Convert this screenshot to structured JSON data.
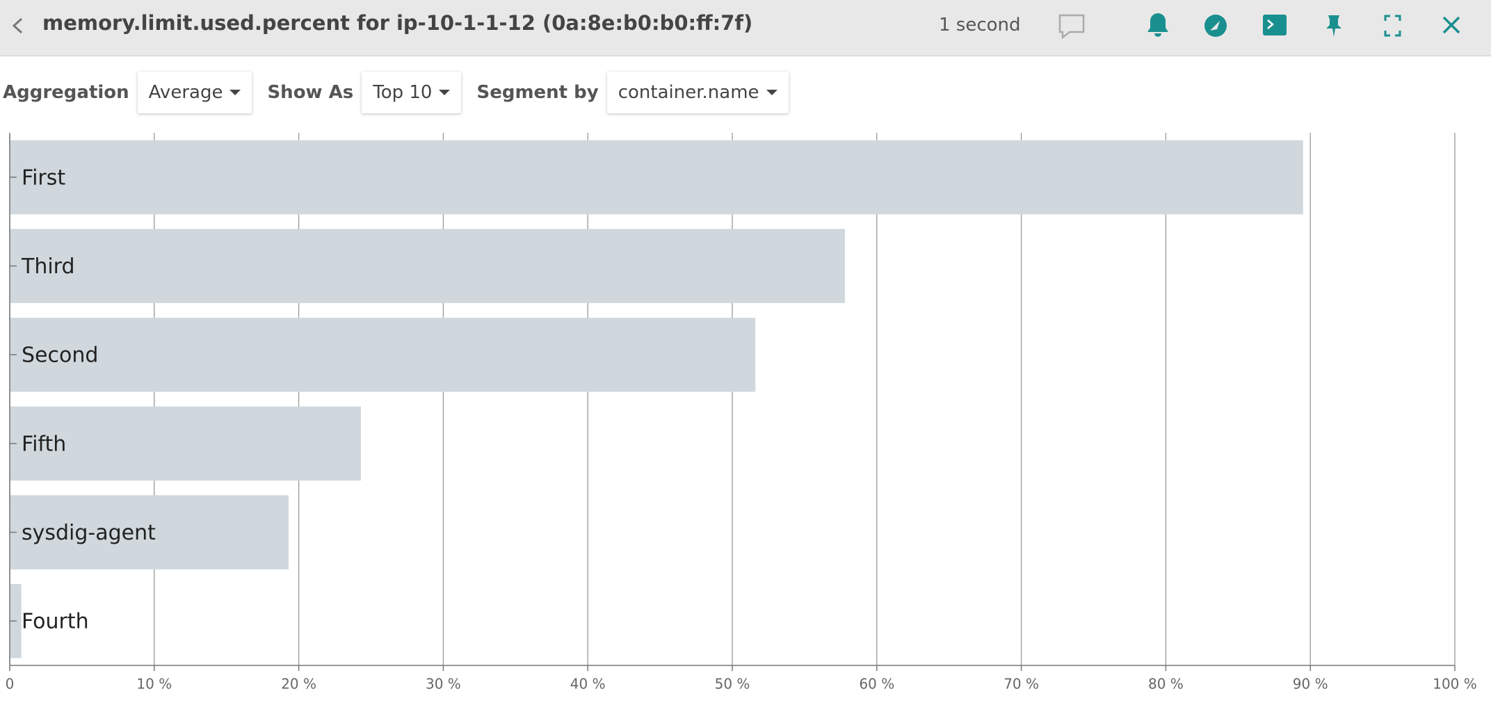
{
  "header": {
    "title": "memory.limit.used.percent for ip-10-1-1-12 (0a:8e:b0:b0:ff:7f)",
    "refresh": "1 second"
  },
  "controls": [
    {
      "label": "Aggregation",
      "value": "Average"
    },
    {
      "label": "Show As",
      "value": "Top 10"
    },
    {
      "label": "Segment by",
      "value": "container.name"
    }
  ],
  "chart_data": {
    "type": "bar",
    "orientation": "horizontal",
    "categories": [
      "First",
      "Third",
      "Second",
      "Fifth",
      "sysdig-agent",
      "Fourth"
    ],
    "values": [
      89.5,
      57.8,
      51.6,
      24.3,
      19.3,
      0.8
    ],
    "color": "#d0d8dd",
    "grid": true,
    "xlim": [
      0,
      100
    ],
    "xticks": [
      0,
      {
        "value": 10,
        "label": "10 %"
      },
      {
        "value": 20,
        "label": "20 %"
      },
      {
        "value": 30,
        "label": "30 %"
      },
      {
        "value": 40,
        "label": "40 %"
      },
      {
        "value": 50,
        "label": "50 %"
      },
      {
        "value": 60,
        "label": "60 %"
      },
      {
        "value": 70,
        "label": "70 %"
      },
      {
        "value": 80,
        "label": "80 %"
      },
      {
        "value": 90,
        "label": "90 %"
      },
      {
        "value": 100,
        "label": "100 %"
      }
    ]
  }
}
